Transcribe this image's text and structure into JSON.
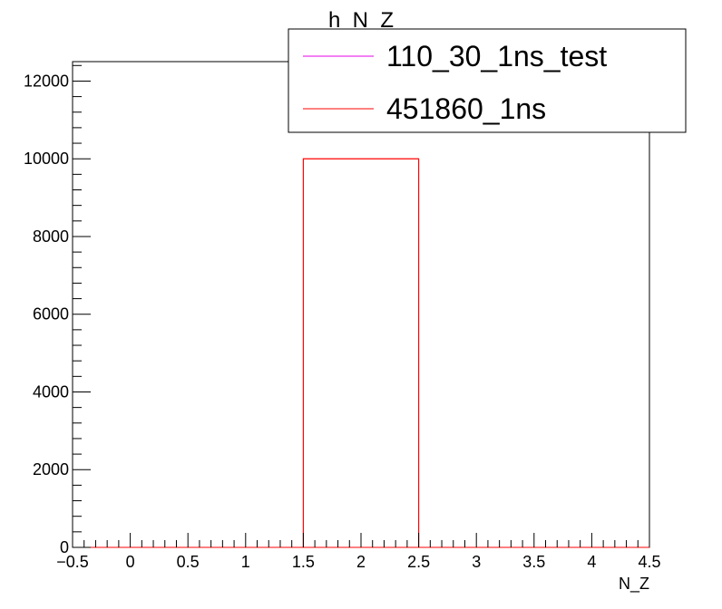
{
  "chart_data": {
    "type": "bar",
    "title": "h_N_Z",
    "xlabel": "N_Z",
    "ylabel": "",
    "xlim": [
      -0.5,
      4.5
    ],
    "ylim": [
      0,
      12500
    ],
    "x_ticks": [
      "−0.5",
      "0",
      "0.5",
      "1",
      "1.5",
      "2",
      "2.5",
      "3",
      "3.5",
      "4",
      "4.5"
    ],
    "x_tick_values": [
      -0.5,
      0,
      0.5,
      1,
      1.5,
      2,
      2.5,
      3,
      3.5,
      4,
      4.5
    ],
    "y_ticks": [
      "0",
      "2000",
      "4000",
      "6000",
      "8000",
      "10000",
      "12000"
    ],
    "y_tick_values": [
      0,
      2000,
      4000,
      6000,
      8000,
      10000,
      12000
    ],
    "bin_edges": [
      -0.5,
      0.5,
      1.5,
      2.5,
      3.5,
      4.5
    ],
    "series": [
      {
        "name": "110_30_1ns_test",
        "color": "#e600e6",
        "values": [
          0,
          0,
          0,
          0,
          0
        ]
      },
      {
        "name": "451860_1ns",
        "color": "#ff0000",
        "values": [
          0,
          0,
          10000,
          0,
          0
        ]
      }
    ],
    "legend_position": "top-right",
    "grid": false
  }
}
